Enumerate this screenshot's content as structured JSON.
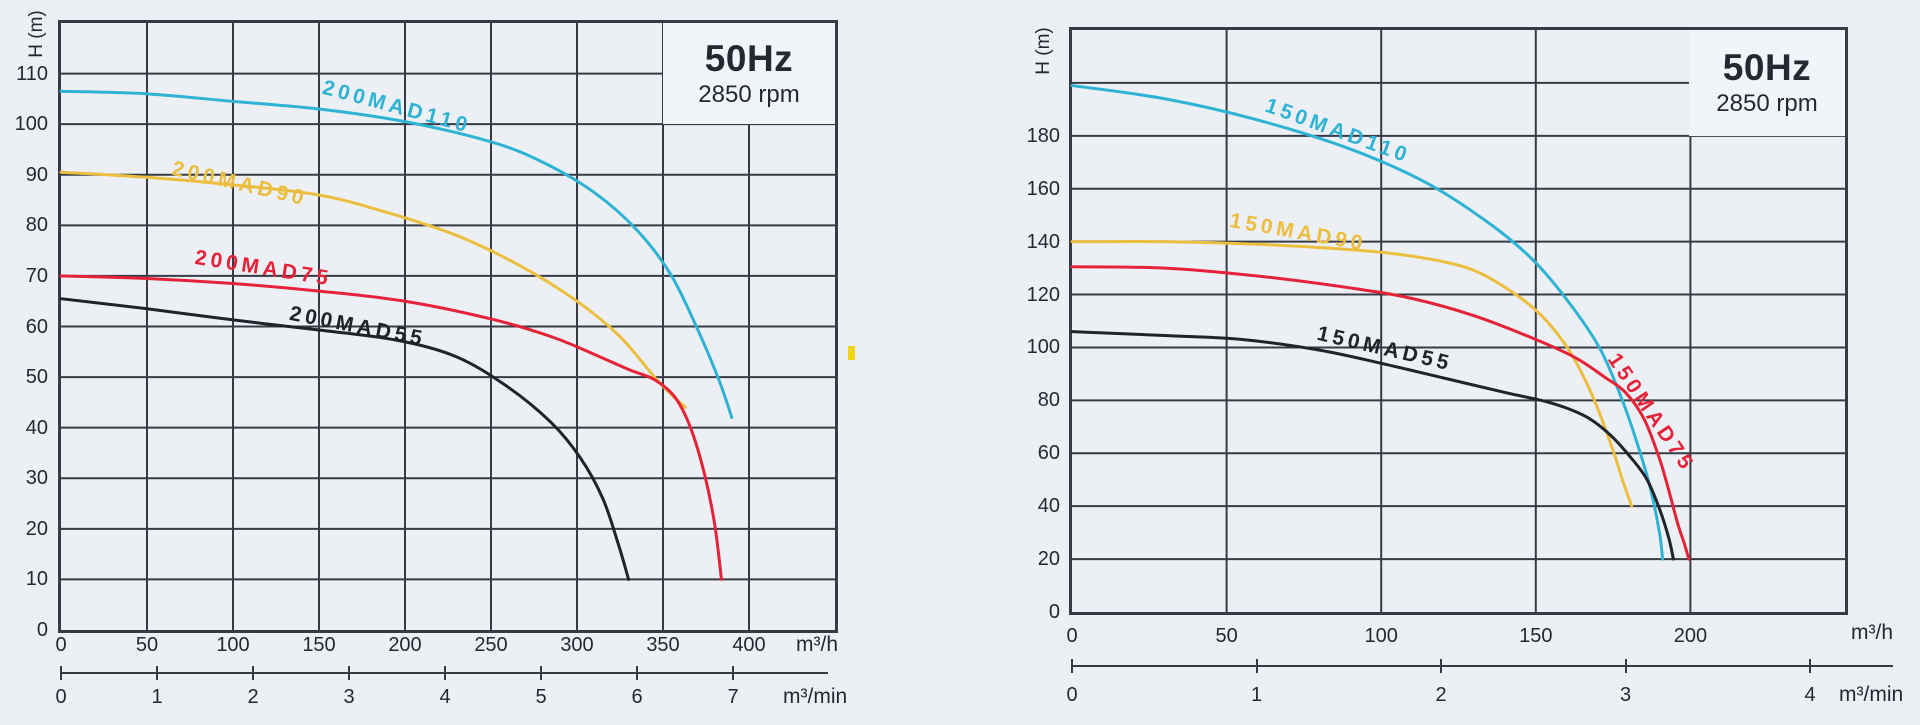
{
  "page": {
    "background": "#ecf0f4",
    "grid_color": "#363b45",
    "text_color": "#232833",
    "artifact_mark_color": "#f2d414"
  },
  "chart_data": [
    {
      "type": "line",
      "title_box": {
        "line1": "50Hz",
        "line2": "2850 rpm"
      },
      "ylabel": "H (m)",
      "x_unit": "m³/h",
      "x2_unit": "m³/min",
      "x_ticks": [
        0,
        50,
        100,
        150,
        200,
        250,
        300,
        350,
        400
      ],
      "y_ticks": [
        0,
        10,
        20,
        30,
        40,
        50,
        60,
        70,
        80,
        90,
        100,
        110
      ],
      "x2_ticks": [
        0,
        1,
        2,
        3,
        4,
        5,
        6,
        7
      ],
      "xlim": [
        0,
        450
      ],
      "ylim": [
        0,
        120
      ],
      "grid": "on",
      "series": [
        {
          "name": "200MAD110",
          "color": "#2fb3d4",
          "points": [
            [
              0,
              106.5
            ],
            [
              50,
              106
            ],
            [
              100,
              104.5
            ],
            [
              150,
              103
            ],
            [
              200,
              100.5
            ],
            [
              250,
              96.5
            ],
            [
              280,
              92.5
            ],
            [
              310,
              86.5
            ],
            [
              335,
              79
            ],
            [
              355,
              70
            ],
            [
              372,
              58
            ],
            [
              383,
              49
            ],
            [
              390,
              42
            ]
          ]
        },
        {
          "name": "200MAD90",
          "color": "#ecbe3f",
          "points": [
            [
              0,
              90.5
            ],
            [
              50,
              89.5
            ],
            [
              100,
              88
            ],
            [
              150,
              86
            ],
            [
              190,
              82.5
            ],
            [
              230,
              78
            ],
            [
              267,
              72
            ],
            [
              300,
              65
            ],
            [
              325,
              58
            ],
            [
              345,
              50
            ],
            [
              355,
              46.5
            ],
            [
              363,
              44
            ]
          ]
        },
        {
          "name": "200MAD75",
          "color": "#e52238",
          "points": [
            [
              0,
              70
            ],
            [
              50,
              69.5
            ],
            [
              100,
              68.5
            ],
            [
              150,
              67
            ],
            [
              200,
              65
            ],
            [
              250,
              61.5
            ],
            [
              285,
              58
            ],
            [
              310,
              54.5
            ],
            [
              330,
              51.5
            ],
            [
              345,
              49.5
            ],
            [
              357,
              46
            ],
            [
              366,
              40
            ],
            [
              374,
              31
            ],
            [
              380,
              21
            ],
            [
              384,
              10
            ]
          ]
        },
        {
          "name": "200MAD55",
          "color": "#202329",
          "points": [
            [
              0,
              65.5
            ],
            [
              50,
              63.5
            ],
            [
              100,
              61.3
            ],
            [
              150,
              59.3
            ],
            [
              195,
              57.3
            ],
            [
              230,
              54
            ],
            [
              260,
              48
            ],
            [
              285,
              41
            ],
            [
              302,
              34
            ],
            [
              315,
              26
            ],
            [
              324,
              17
            ],
            [
              330,
              10
            ]
          ]
        }
      ]
    },
    {
      "type": "line",
      "title_box": {
        "line1": "50Hz",
        "line2": "2850 rpm"
      },
      "ylabel": "H (m)",
      "x_unit": "m³/h",
      "x2_unit": "m³/min",
      "x_ticks": [
        0,
        50,
        100,
        150,
        200
      ],
      "y_ticks": [
        0,
        20,
        40,
        60,
        80,
        100,
        120,
        140,
        160,
        180
      ],
      "x2_ticks": [
        0,
        1,
        2,
        3,
        4
      ],
      "xlim": [
        0,
        250
      ],
      "ylim": [
        0,
        220
      ],
      "grid": "on",
      "series": [
        {
          "name": "150MAD110",
          "color": "#2fb3d4",
          "points": [
            [
              0,
              199
            ],
            [
              30,
              194
            ],
            [
              60,
              186
            ],
            [
              90,
              175
            ],
            [
              115,
              162
            ],
            [
              136,
              146
            ],
            [
              150,
              132
            ],
            [
              162,
              115
            ],
            [
              171,
              99
            ],
            [
              178,
              80
            ],
            [
              183,
              63
            ],
            [
              187,
              47
            ],
            [
              190,
              30
            ],
            [
              191,
              20
            ]
          ]
        },
        {
          "name": "150MAD90",
          "color": "#ecbe3f",
          "points": [
            [
              0,
              140
            ],
            [
              30,
              140
            ],
            [
              60,
              139
            ],
            [
              90,
              137
            ],
            [
              110,
              134.5
            ],
            [
              128,
              130
            ],
            [
              141,
              122
            ],
            [
              151,
              113
            ],
            [
              159,
              102
            ],
            [
              165,
              90
            ],
            [
              170,
              77
            ],
            [
              175,
              61
            ],
            [
              178,
              50
            ],
            [
              181,
              40
            ]
          ]
        },
        {
          "name": "150MAD75",
          "color": "#e52238",
          "points": [
            [
              0,
              130.5
            ],
            [
              30,
              130
            ],
            [
              60,
              127
            ],
            [
              90,
              122.5
            ],
            [
              110,
              118.5
            ],
            [
              130,
              112
            ],
            [
              150,
              103
            ],
            [
              163,
              96
            ],
            [
              172,
              89
            ],
            [
              179,
              83
            ],
            [
              185,
              73
            ],
            [
              190,
              58
            ],
            [
              193,
              46
            ],
            [
              196,
              33
            ],
            [
              198,
              26
            ],
            [
              199.5,
              20
            ]
          ]
        },
        {
          "name": "150MAD55",
          "color": "#202329",
          "points": [
            [
              0,
              106
            ],
            [
              30,
              104.5
            ],
            [
              55,
              103
            ],
            [
              80,
              99
            ],
            [
              100,
              94
            ],
            [
              120,
              88.5
            ],
            [
              140,
              83
            ],
            [
              155,
              79
            ],
            [
              166,
              74
            ],
            [
              174,
              67
            ],
            [
              181,
              58
            ],
            [
              186,
              50
            ],
            [
              190,
              39
            ],
            [
              193,
              28
            ],
            [
              194.5,
              20
            ]
          ]
        }
      ]
    }
  ]
}
